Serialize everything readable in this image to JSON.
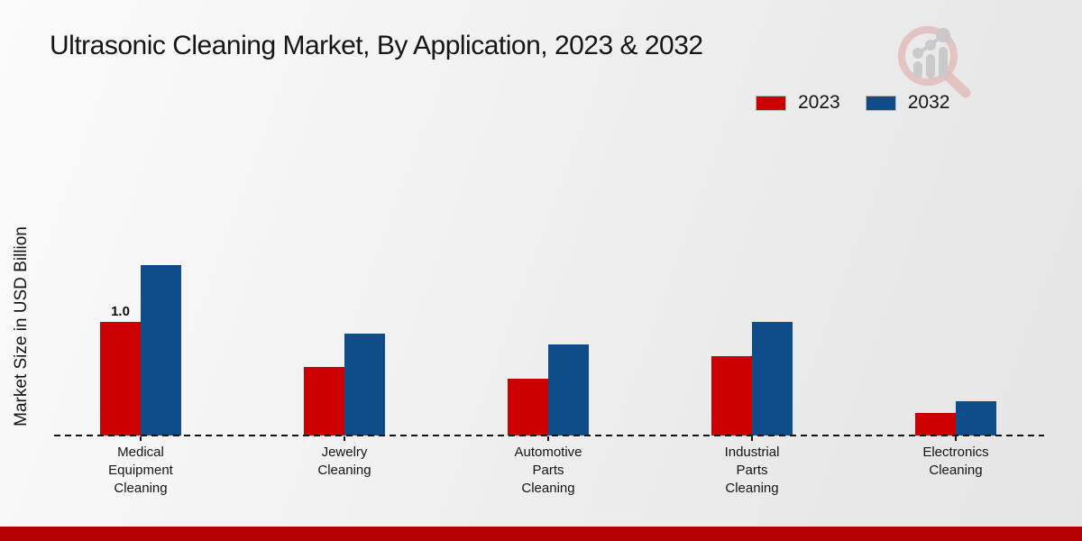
{
  "header": {
    "title": "Ultrasonic Cleaning Market, By Application, 2023 & 2032"
  },
  "icons": {
    "brand_logo": "magnifying-glass-over-bar-chart-watermark"
  },
  "colors": {
    "bar_2023": "#cc0000",
    "bar_2032": "#0f4d8a",
    "footer_bar": "#b50000",
    "baseline": "#141414",
    "logo_magnifier": "#e3bcbc",
    "logo_bars": "#c9c9c9"
  },
  "chart_data": {
    "type": "bar",
    "title": "Ultrasonic Cleaning Market, By Application, 2023 & 2032",
    "xlabel": "",
    "ylabel": "Market Size in USD Billion",
    "categories": [
      "Medical\nEquipment\nCleaning",
      "Jewelry\nCleaning",
      "Automotive\nParts\nCleaning",
      "Industrial\nParts\nCleaning",
      "Electronics\nCleaning"
    ],
    "series": [
      {
        "name": "2023",
        "color": "#cc0000",
        "values": [
          1.0,
          0.6,
          0.5,
          0.7,
          0.2
        ],
        "data_labels": [
          "1.0",
          "",
          "",
          "",
          ""
        ]
      },
      {
        "name": "2032",
        "color": "#0f4d8a",
        "values": [
          1.5,
          0.9,
          0.8,
          1.0,
          0.3
        ],
        "data_labels": [
          "",
          "",
          "",
          "",
          ""
        ]
      }
    ],
    "ylim": [
      0,
      1.6
    ],
    "grid": false,
    "y_axis_ticks_visible": false,
    "baseline_style": "dashed",
    "legend_position": "top-right"
  }
}
